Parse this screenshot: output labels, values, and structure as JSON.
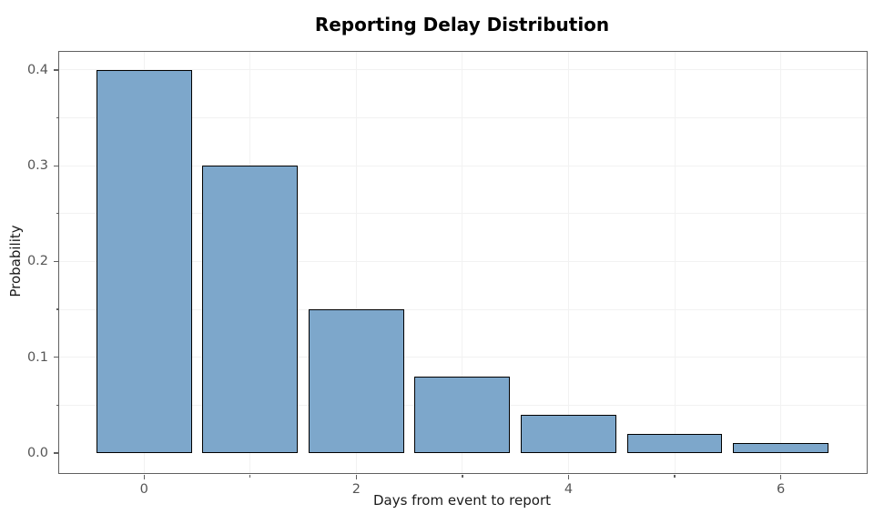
{
  "chart_data": {
    "type": "bar",
    "title": "Reporting Delay Distribution",
    "xlabel": "Days from event to report",
    "ylabel": "Probability",
    "categories": [
      0,
      1,
      2,
      3,
      4,
      5,
      6
    ],
    "values": [
      0.4,
      0.3,
      0.15,
      0.08,
      0.04,
      0.02,
      0.01
    ],
    "bar_width": 0.9,
    "xlim": [
      -0.8,
      6.81
    ],
    "ylim": [
      -0.021,
      0.419
    ],
    "x_major_ticks": [
      0,
      2,
      4,
      6
    ],
    "x_tick_labels": [
      "0",
      "2",
      "4",
      "6"
    ],
    "x_minor_ticks": [
      1,
      3,
      5
    ],
    "y_major_ticks": [
      0.0,
      0.1,
      0.2,
      0.3,
      0.4
    ],
    "y_tick_labels": [
      "0.0",
      "0.1",
      "0.2",
      "0.3",
      "0.4"
    ],
    "y_minor_ticks": [
      0.05,
      0.15,
      0.25,
      0.35
    ],
    "grid": "major+minor horizontal and vertical, very faint",
    "legend": "none",
    "colors": {
      "bar_fill": "#7da7cb",
      "bar_edge": "#000000",
      "grid": "#f2f2f2",
      "spine": "#606060",
      "tick_label": "#555555",
      "axis_label": "#1a1a1a",
      "title": "#000000",
      "background": "#ffffff"
    }
  }
}
